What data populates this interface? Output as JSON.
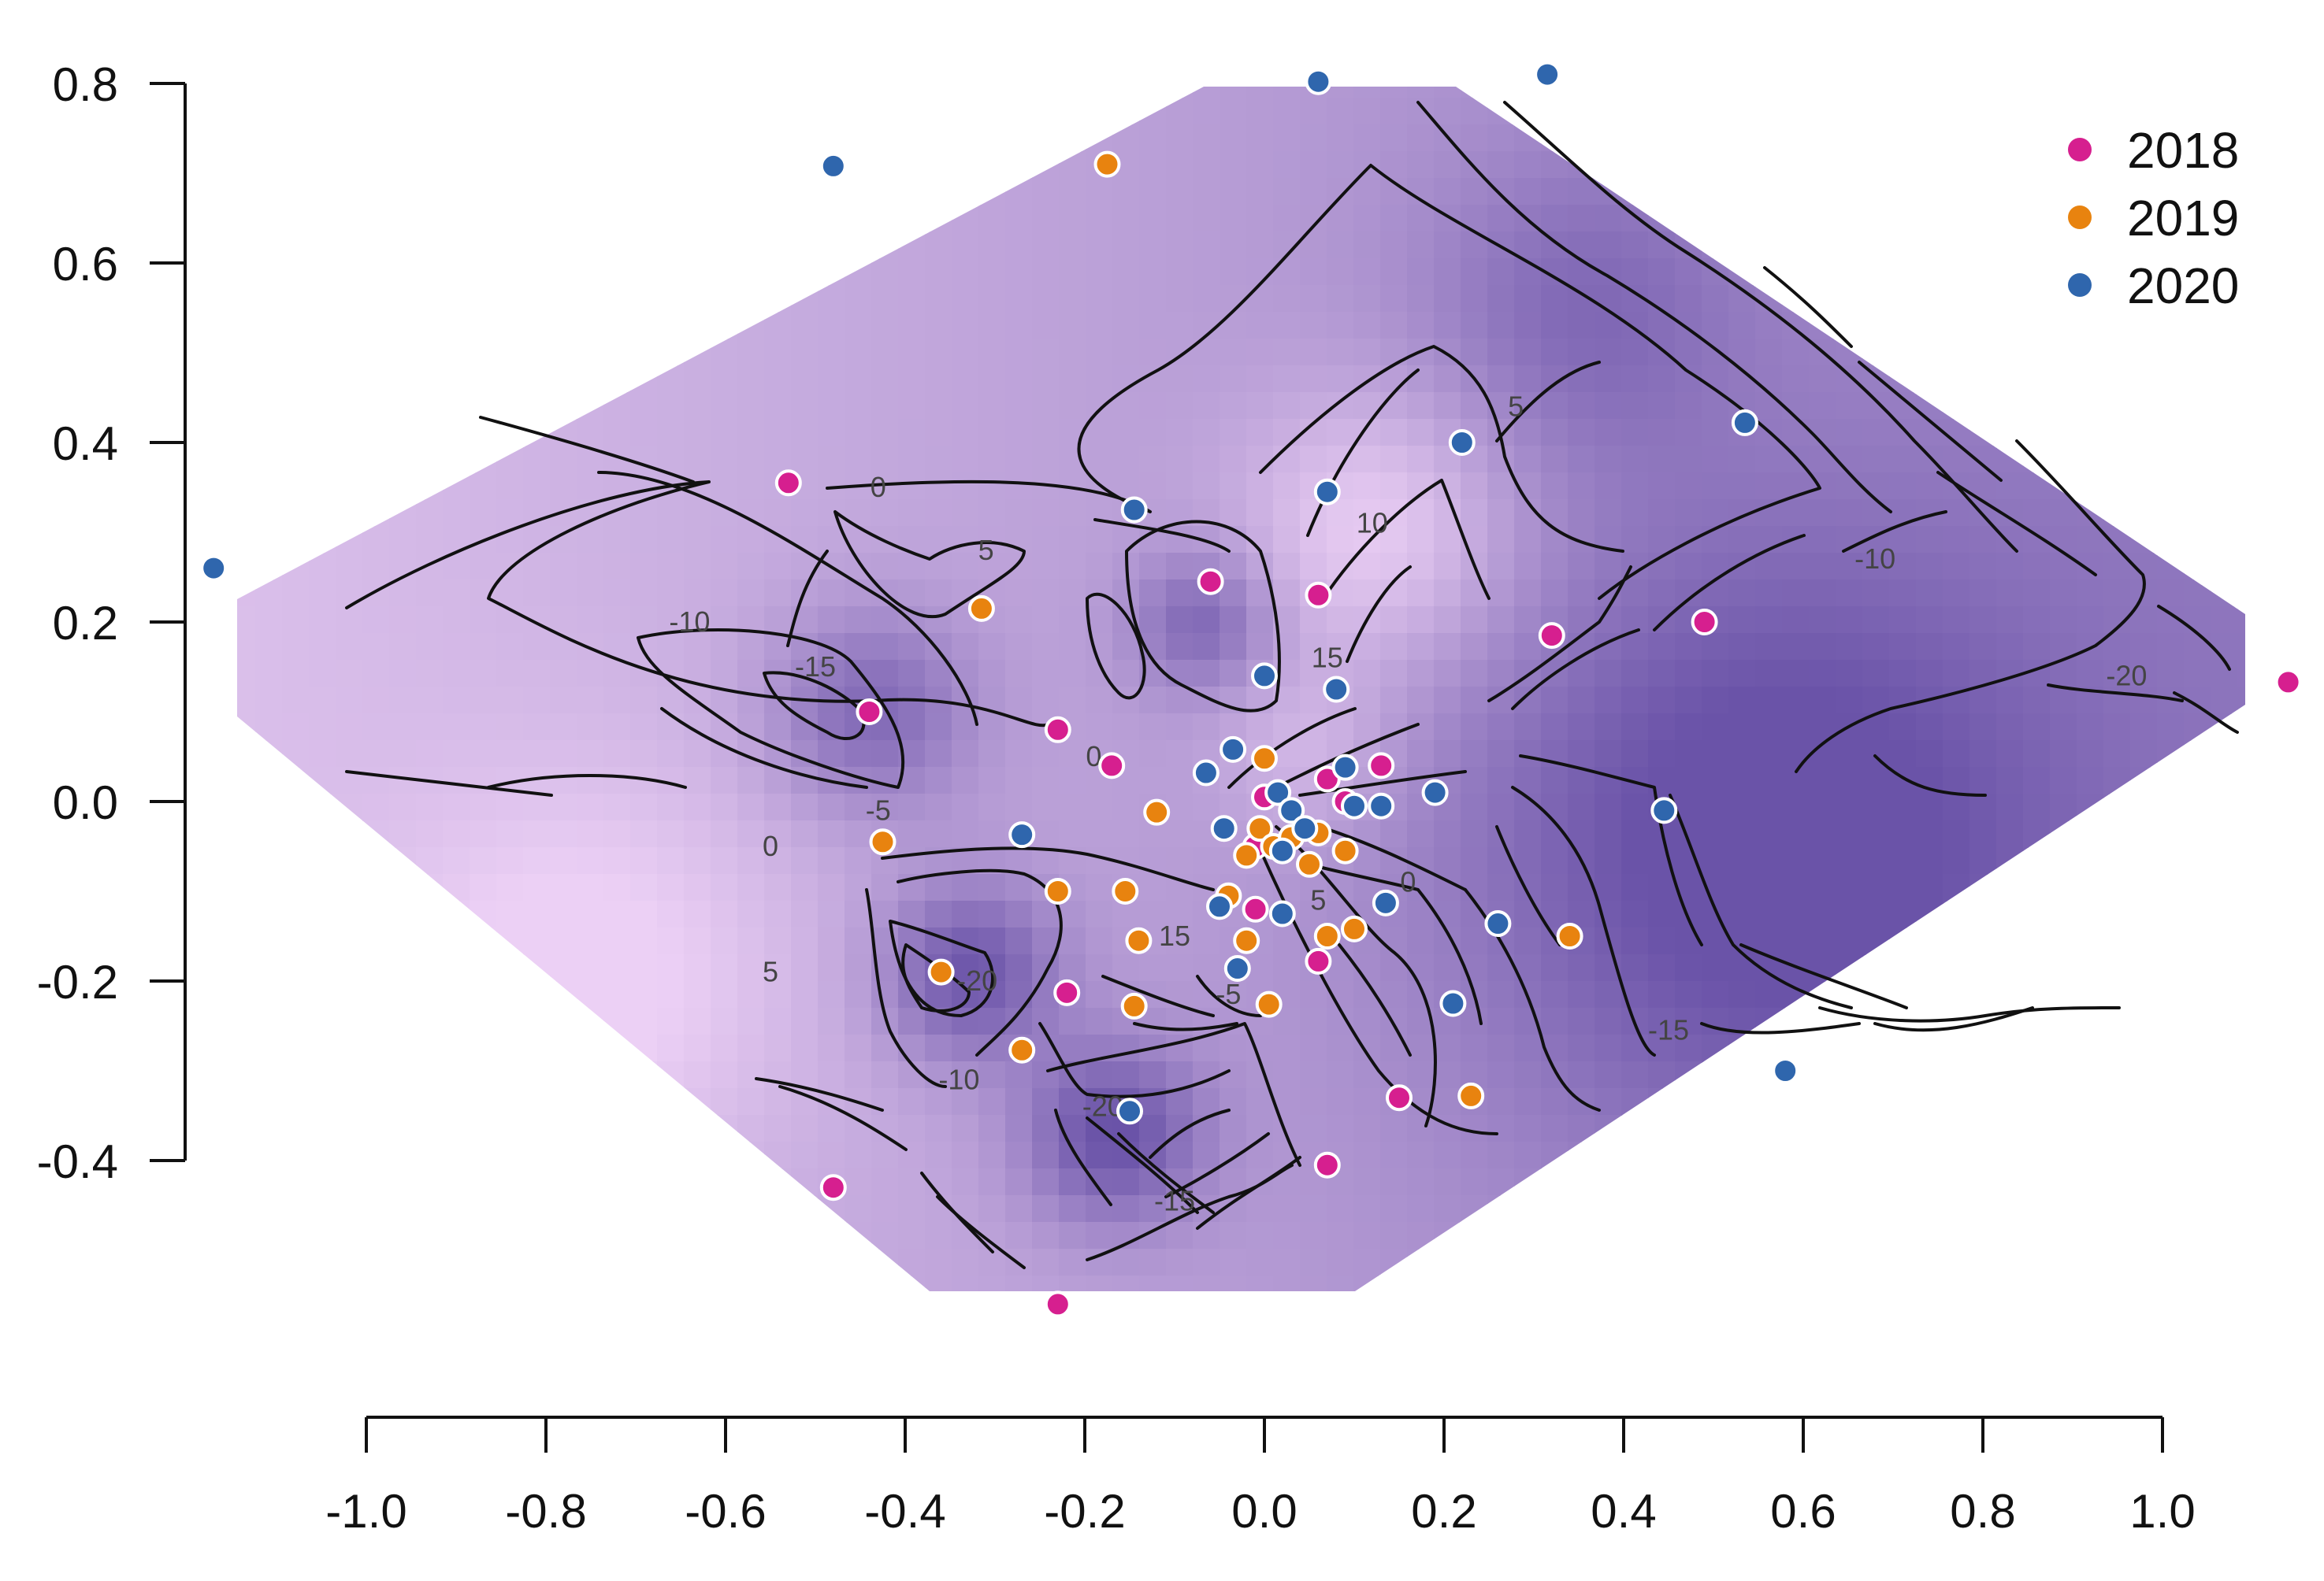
{
  "chart_data": {
    "type": "heatmap",
    "title": "",
    "xlabel": "",
    "ylabel": "",
    "xlim": [
      -1.0,
      1.0
    ],
    "ylim": [
      -0.4,
      0.8
    ],
    "x_ticks": [
      "-1.0",
      "-0.8",
      "-0.6",
      "-0.4",
      "-0.2",
      "0.0",
      "0.2",
      "0.4",
      "0.6",
      "0.8",
      "1.0"
    ],
    "y_ticks": [
      "0.8",
      "0.6",
      "0.4",
      "0.2",
      "0.0",
      "-0.2",
      "-0.4"
    ],
    "grid": false,
    "legend": {
      "placement": "top-right",
      "entries": [
        {
          "label": "2018",
          "color": "#d61f8f"
        },
        {
          "label": "2019",
          "color": "#e8830f"
        },
        {
          "label": "2020",
          "color": "#2f66ad"
        }
      ]
    },
    "fill_colors": {
      "low": "#6a53a8",
      "high": "#ecd0f5"
    },
    "contour_levels": [
      "5",
      "10",
      "15",
      "0",
      "-5",
      "-10",
      "-15",
      "-20"
    ],
    "contour_labels": [
      {
        "text": "0",
        "x": -0.43,
        "y": 0.35
      },
      {
        "text": "5",
        "x": -0.31,
        "y": 0.28
      },
      {
        "text": "-10",
        "x": -0.64,
        "y": 0.2
      },
      {
        "text": "-15",
        "x": -0.5,
        "y": 0.15
      },
      {
        "text": "0",
        "x": -0.19,
        "y": 0.05
      },
      {
        "text": "-5",
        "x": -0.43,
        "y": -0.01
      },
      {
        "text": "0",
        "x": -0.55,
        "y": -0.05
      },
      {
        "text": "5",
        "x": -0.55,
        "y": -0.19
      },
      {
        "text": "-20",
        "x": -0.32,
        "y": -0.2
      },
      {
        "text": "15",
        "x": -0.1,
        "y": -0.15
      },
      {
        "text": "-5",
        "x": -0.04,
        "y": -0.215
      },
      {
        "text": "-10",
        "x": -0.34,
        "y": -0.31
      },
      {
        "text": "-20",
        "x": -0.18,
        "y": -0.34
      },
      {
        "text": "-15",
        "x": -0.1,
        "y": -0.445
      },
      {
        "text": "5",
        "x": 0.28,
        "y": 0.44
      },
      {
        "text": "10",
        "x": 0.12,
        "y": 0.31
      },
      {
        "text": "15",
        "x": 0.07,
        "y": 0.16
      },
      {
        "text": "5",
        "x": 0.06,
        "y": -0.11
      },
      {
        "text": "0",
        "x": 0.16,
        "y": -0.09
      },
      {
        "text": "-10",
        "x": 0.68,
        "y": 0.27
      },
      {
        "text": "-20",
        "x": 0.96,
        "y": 0.14
      },
      {
        "text": "-15",
        "x": 0.45,
        "y": -0.255
      }
    ],
    "series": [
      {
        "name": "2018",
        "points": [
          [
            -0.53,
            0.355
          ],
          [
            -0.44,
            0.1
          ],
          [
            -0.23,
            0.08
          ],
          [
            -0.17,
            0.04
          ],
          [
            -0.06,
            0.245
          ],
          [
            0.06,
            0.23
          ],
          [
            0.32,
            0.185
          ],
          [
            0.49,
            0.2
          ],
          [
            1.14,
            0.133
          ],
          [
            0.0,
            0.005
          ],
          [
            0.07,
            0.025
          ],
          [
            0.13,
            0.04
          ],
          [
            0.09,
            0.0
          ],
          [
            -0.01,
            -0.05
          ],
          [
            -0.01,
            -0.12
          ],
          [
            0.06,
            -0.178
          ],
          [
            0.15,
            -0.33
          ],
          [
            0.07,
            -0.405
          ],
          [
            -0.22,
            -0.213
          ],
          [
            -0.48,
            -0.43
          ],
          [
            -0.23,
            -0.56
          ]
        ]
      },
      {
        "name": "2019",
        "points": [
          [
            -0.175,
            0.71
          ],
          [
            -0.315,
            0.215
          ],
          [
            -0.425,
            -0.045
          ],
          [
            -0.12,
            -0.012
          ],
          [
            0.0,
            0.048
          ],
          [
            -0.005,
            -0.03
          ],
          [
            0.01,
            -0.05
          ],
          [
            -0.02,
            -0.06
          ],
          [
            0.03,
            -0.04
          ],
          [
            0.06,
            -0.035
          ],
          [
            0.09,
            -0.055
          ],
          [
            0.05,
            -0.07
          ],
          [
            -0.23,
            -0.1
          ],
          [
            -0.155,
            -0.1
          ],
          [
            -0.04,
            -0.105
          ],
          [
            -0.14,
            -0.155
          ],
          [
            -0.02,
            -0.155
          ],
          [
            0.07,
            -0.15
          ],
          [
            0.1,
            -0.142
          ],
          [
            0.34,
            -0.15
          ],
          [
            -0.36,
            -0.19
          ],
          [
            -0.145,
            -0.228
          ],
          [
            0.005,
            -0.226
          ],
          [
            -0.27,
            -0.277
          ],
          [
            0.23,
            -0.328
          ]
        ]
      },
      {
        "name": "2020",
        "points": [
          [
            -1.17,
            0.26
          ],
          [
            -0.48,
            0.708
          ],
          [
            0.06,
            0.802
          ],
          [
            0.315,
            0.81
          ],
          [
            0.22,
            0.4
          ],
          [
            0.535,
            0.422
          ],
          [
            0.07,
            0.345
          ],
          [
            -0.145,
            0.325
          ],
          [
            0.0,
            0.14
          ],
          [
            0.08,
            0.125
          ],
          [
            -0.035,
            0.058
          ],
          [
            -0.065,
            0.032
          ],
          [
            0.09,
            0.038
          ],
          [
            0.19,
            0.01
          ],
          [
            0.13,
            -0.005
          ],
          [
            0.1,
            -0.005
          ],
          [
            0.445,
            -0.01
          ],
          [
            0.015,
            0.01
          ],
          [
            0.03,
            -0.01
          ],
          [
            0.045,
            -0.03
          ],
          [
            -0.045,
            -0.03
          ],
          [
            0.02,
            -0.055
          ],
          [
            -0.27,
            -0.037
          ],
          [
            0.135,
            -0.113
          ],
          [
            0.26,
            -0.136
          ],
          [
            -0.05,
            -0.117
          ],
          [
            0.02,
            -0.125
          ],
          [
            -0.03,
            -0.186
          ],
          [
            0.21,
            -0.225
          ],
          [
            0.58,
            -0.3
          ],
          [
            -0.15,
            -0.345
          ]
        ]
      }
    ]
  }
}
